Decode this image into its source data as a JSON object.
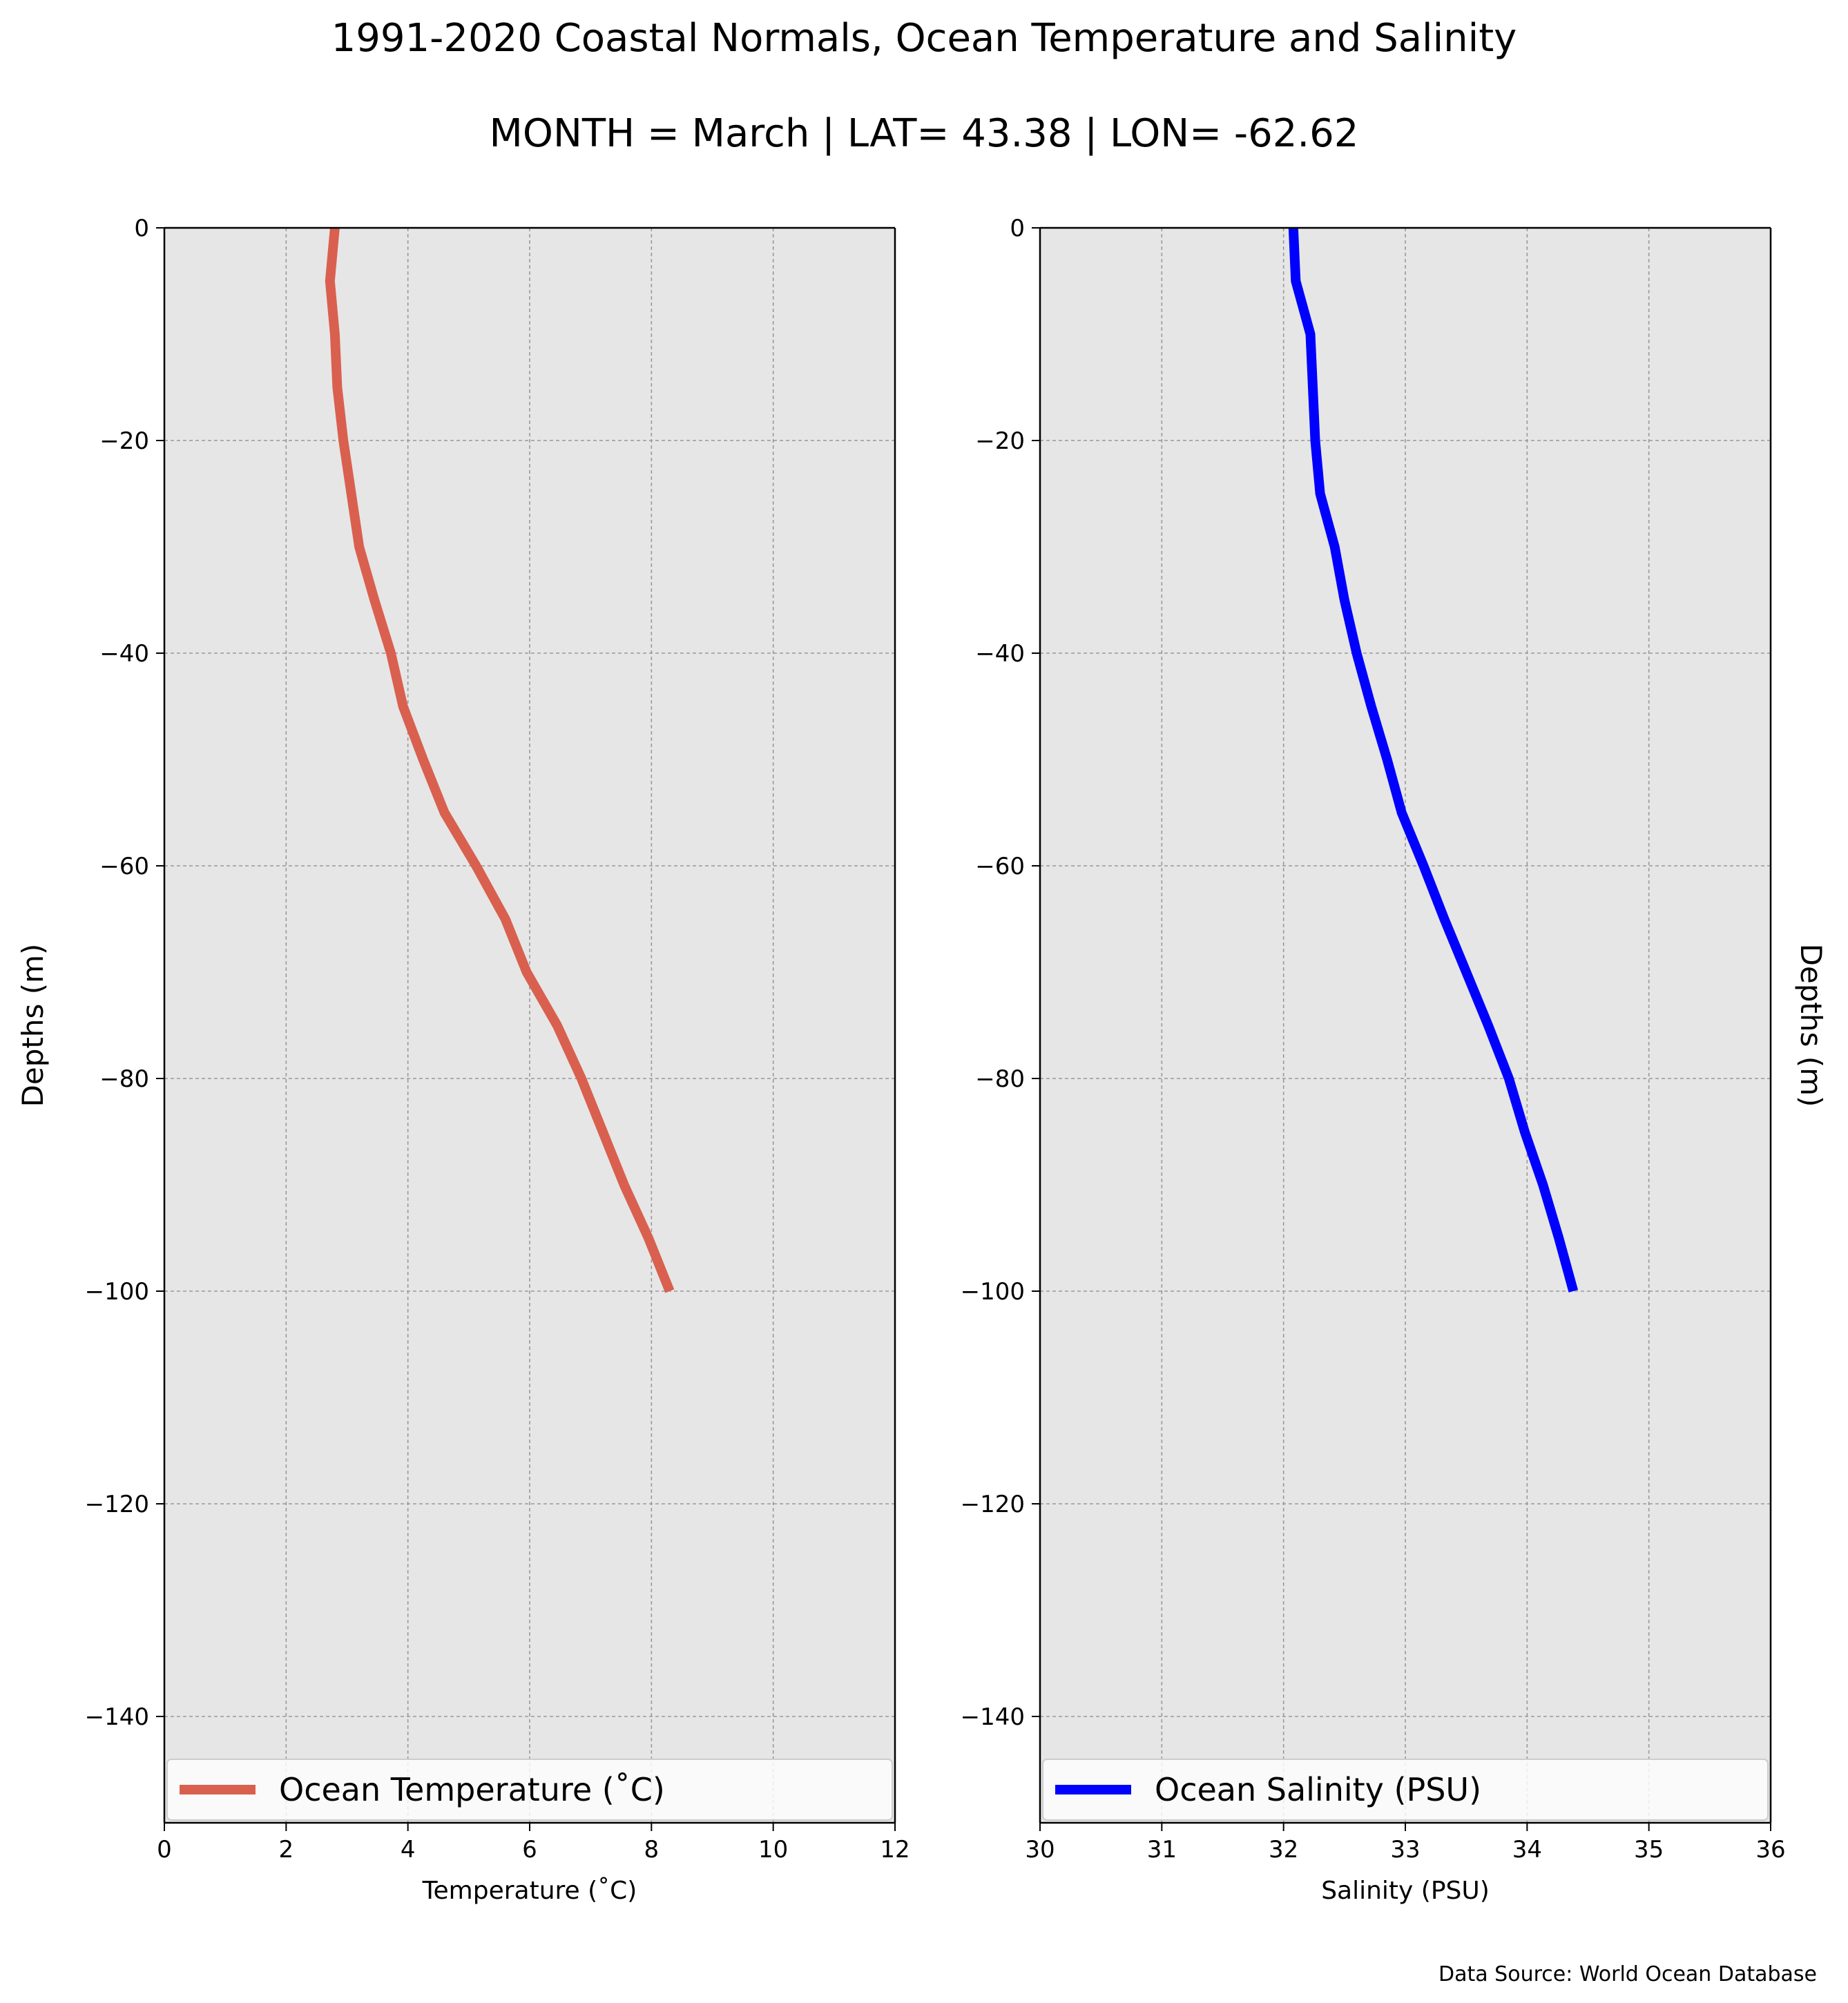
{
  "title": "1991-2020 Coastal Normals, Ocean Temperature and Salinity",
  "subtitle": "MONTH = March | LAT= 43.38 | LON= -62.62",
  "source": "Data Source: World Ocean Database",
  "colors": {
    "panel_bg": "#e6e6e6",
    "temperature": "#d9604f",
    "salinity": "#0000ff",
    "grid": "#999999"
  },
  "chart_data": [
    {
      "type": "line",
      "xlabel": "Temperature (˚C)",
      "ylabel": "Depths (m)",
      "xlim": [
        0,
        12
      ],
      "ylim": [
        -150,
        0
      ],
      "xticks": [
        0,
        2,
        4,
        6,
        8,
        10,
        12
      ],
      "yticks": [
        0,
        -20,
        -40,
        -60,
        -80,
        -100,
        -120,
        -140
      ],
      "grid": true,
      "legend_position": "bottom",
      "series": [
        {
          "name": "Ocean Temperature (˚C)",
          "color": "#d9604f",
          "x": [
            2.8,
            2.72,
            2.8,
            2.84,
            2.94,
            3.2,
            3.45,
            3.72,
            3.92,
            4.25,
            4.6,
            5.12,
            5.6,
            5.95,
            6.45,
            6.85,
            7.2,
            7.55,
            7.95,
            8.3
          ],
          "y": [
            0,
            -5,
            -10,
            -15,
            -20,
            -30,
            -35,
            -40,
            -45,
            -50,
            -55,
            -60,
            -65,
            -70,
            -75,
            -80,
            -85,
            -90,
            -95,
            -100
          ]
        }
      ]
    },
    {
      "type": "line",
      "xlabel": "Salinity (PSU)",
      "ylabel": "Depths (m)",
      "xlim": [
        30,
        36
      ],
      "ylim": [
        -150,
        0
      ],
      "xticks": [
        30,
        31,
        32,
        33,
        34,
        35,
        36
      ],
      "yticks": [
        0,
        -20,
        -40,
        -60,
        -80,
        -100,
        -120,
        -140
      ],
      "grid": true,
      "legend_position": "bottom",
      "series": [
        {
          "name": "Ocean Salinity (PSU)",
          "color": "#0000ff",
          "x": [
            32.08,
            32.1,
            32.22,
            32.26,
            32.3,
            32.42,
            32.5,
            32.6,
            32.72,
            32.85,
            32.97,
            33.15,
            33.32,
            33.5,
            33.68,
            33.85,
            33.98,
            34.13,
            34.26,
            34.38
          ],
          "y": [
            0,
            -5,
            -10,
            -20,
            -25,
            -30,
            -35,
            -40,
            -45,
            -50,
            -55,
            -60,
            -65,
            -70,
            -75,
            -80,
            -85,
            -90,
            -95,
            -100
          ]
        }
      ]
    }
  ]
}
